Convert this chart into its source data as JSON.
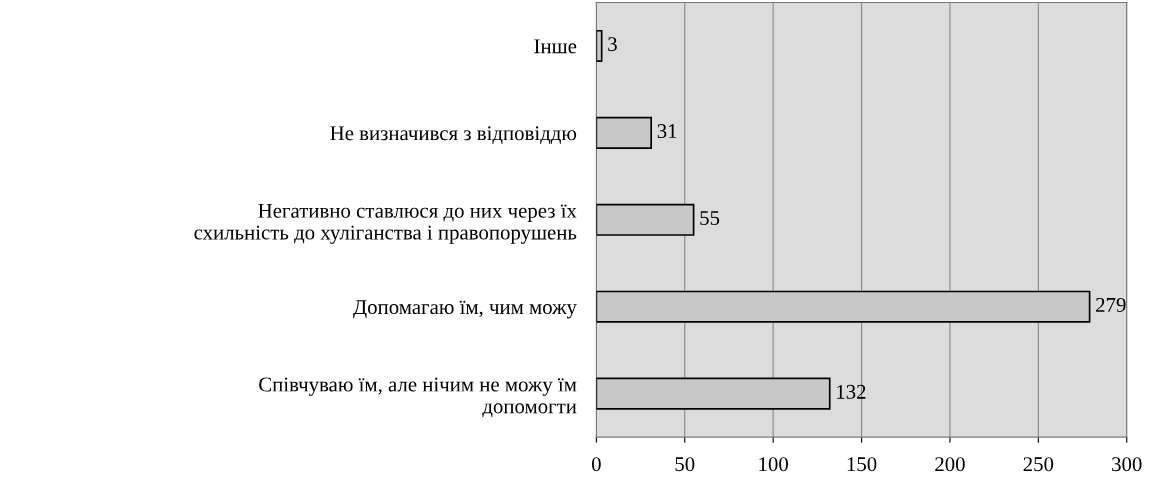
{
  "chart_data": {
    "type": "bar",
    "orientation": "horizontal",
    "categories": [
      "Інше",
      "Не визначився з відповіддю",
      "Негативно ставлюся до них через їх\nсхильність до хуліганства і правопорушень",
      "Допомагаю їм, чим можу",
      "Співчуваю їм, але нічим не можу їм\nдопомогти"
    ],
    "values": [
      3,
      31,
      55,
      279,
      132
    ],
    "color": "#c8c8c8",
    "xlim": [
      0,
      300
    ],
    "xticks": [
      0,
      50,
      100,
      150,
      200,
      250,
      300
    ],
    "grid": "x",
    "data_labels": true,
    "legend": false
  }
}
